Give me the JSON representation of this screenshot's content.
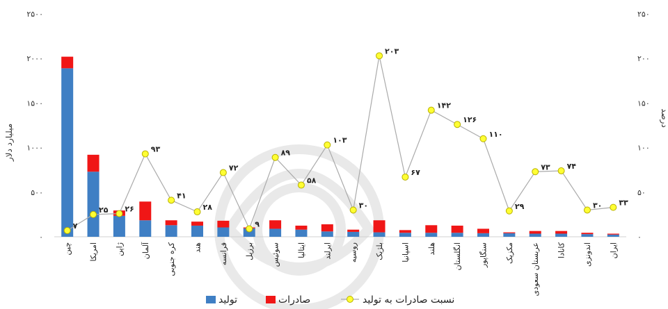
{
  "chart_data": {
    "type": "bar",
    "title": "",
    "stacked": true,
    "ylabel_left": "میلیارد دلار",
    "ylabel_right": "درصد",
    "y_left": {
      "min": 0,
      "max": 2500,
      "ticks": [
        "۰",
        "۵۰۰",
        "۱۰۰۰",
        "۱۵۰۰",
        "۲۰۰۰",
        "۲۵۰۰"
      ]
    },
    "y_right": {
      "min": 0,
      "max": 250,
      "ticks": [
        "۰",
        "۵۰",
        "۱۰۰",
        "۱۵۰",
        "۲۰۰",
        "۲۵۰"
      ]
    },
    "categories": [
      "چین",
      "امریکا",
      "ژاپن",
      "آلمان",
      "کره جنوبی",
      "هند",
      "فرانسه",
      "برزیل",
      "سوئیس",
      "ایتالیا",
      "ایرلند",
      "روسیه",
      "بلژیک",
      "اسپانیا",
      "هلند",
      "انگلستان",
      "سنگاپور",
      "مکزیک",
      "عربستان سعودی",
      "کانادا",
      "اندونزی",
      "ایران"
    ],
    "series": [
      {
        "name": "تولید",
        "color": "#3f7fc4",
        "axis": "left",
        "values": [
          1890,
          730,
          235,
          185,
          130,
          125,
          105,
          95,
          90,
          80,
          60,
          55,
          50,
          45,
          45,
          45,
          40,
          40,
          35,
          35,
          30,
          25
        ]
      },
      {
        "name": "صادرات",
        "color": "#f01616",
        "axis": "left",
        "values": [
          130,
          190,
          60,
          210,
          55,
          45,
          75,
          10,
          95,
          45,
          80,
          25,
          135,
          30,
          85,
          80,
          50,
          10,
          30,
          30,
          15,
          10
        ]
      },
      {
        "name": "نسبت صادرات به تولید",
        "color": "#ffff33",
        "line_color": "#aaaaaa",
        "axis": "right",
        "type": "line",
        "values": [
          7,
          25,
          26,
          93,
          41,
          28,
          72,
          9,
          89,
          58,
          103,
          30,
          203,
          67,
          142,
          126,
          110,
          29,
          73,
          74,
          30,
          33
        ],
        "labels": [
          "۷",
          "۲۵",
          "۲۶",
          "۹۳",
          "۴۱",
          "۲۸",
          "۷۲",
          "۹",
          "۸۹",
          "۵۸",
          "۱۰۳",
          "۳۰",
          "۲۰۳",
          "۶۷",
          "۱۴۲",
          "۱۲۶",
          "۱۱۰",
          "۲۹",
          "۷۳",
          "۷۴",
          "۳۰",
          "۳۳"
        ]
      }
    ],
    "grid": false,
    "legend_position": "bottom"
  }
}
